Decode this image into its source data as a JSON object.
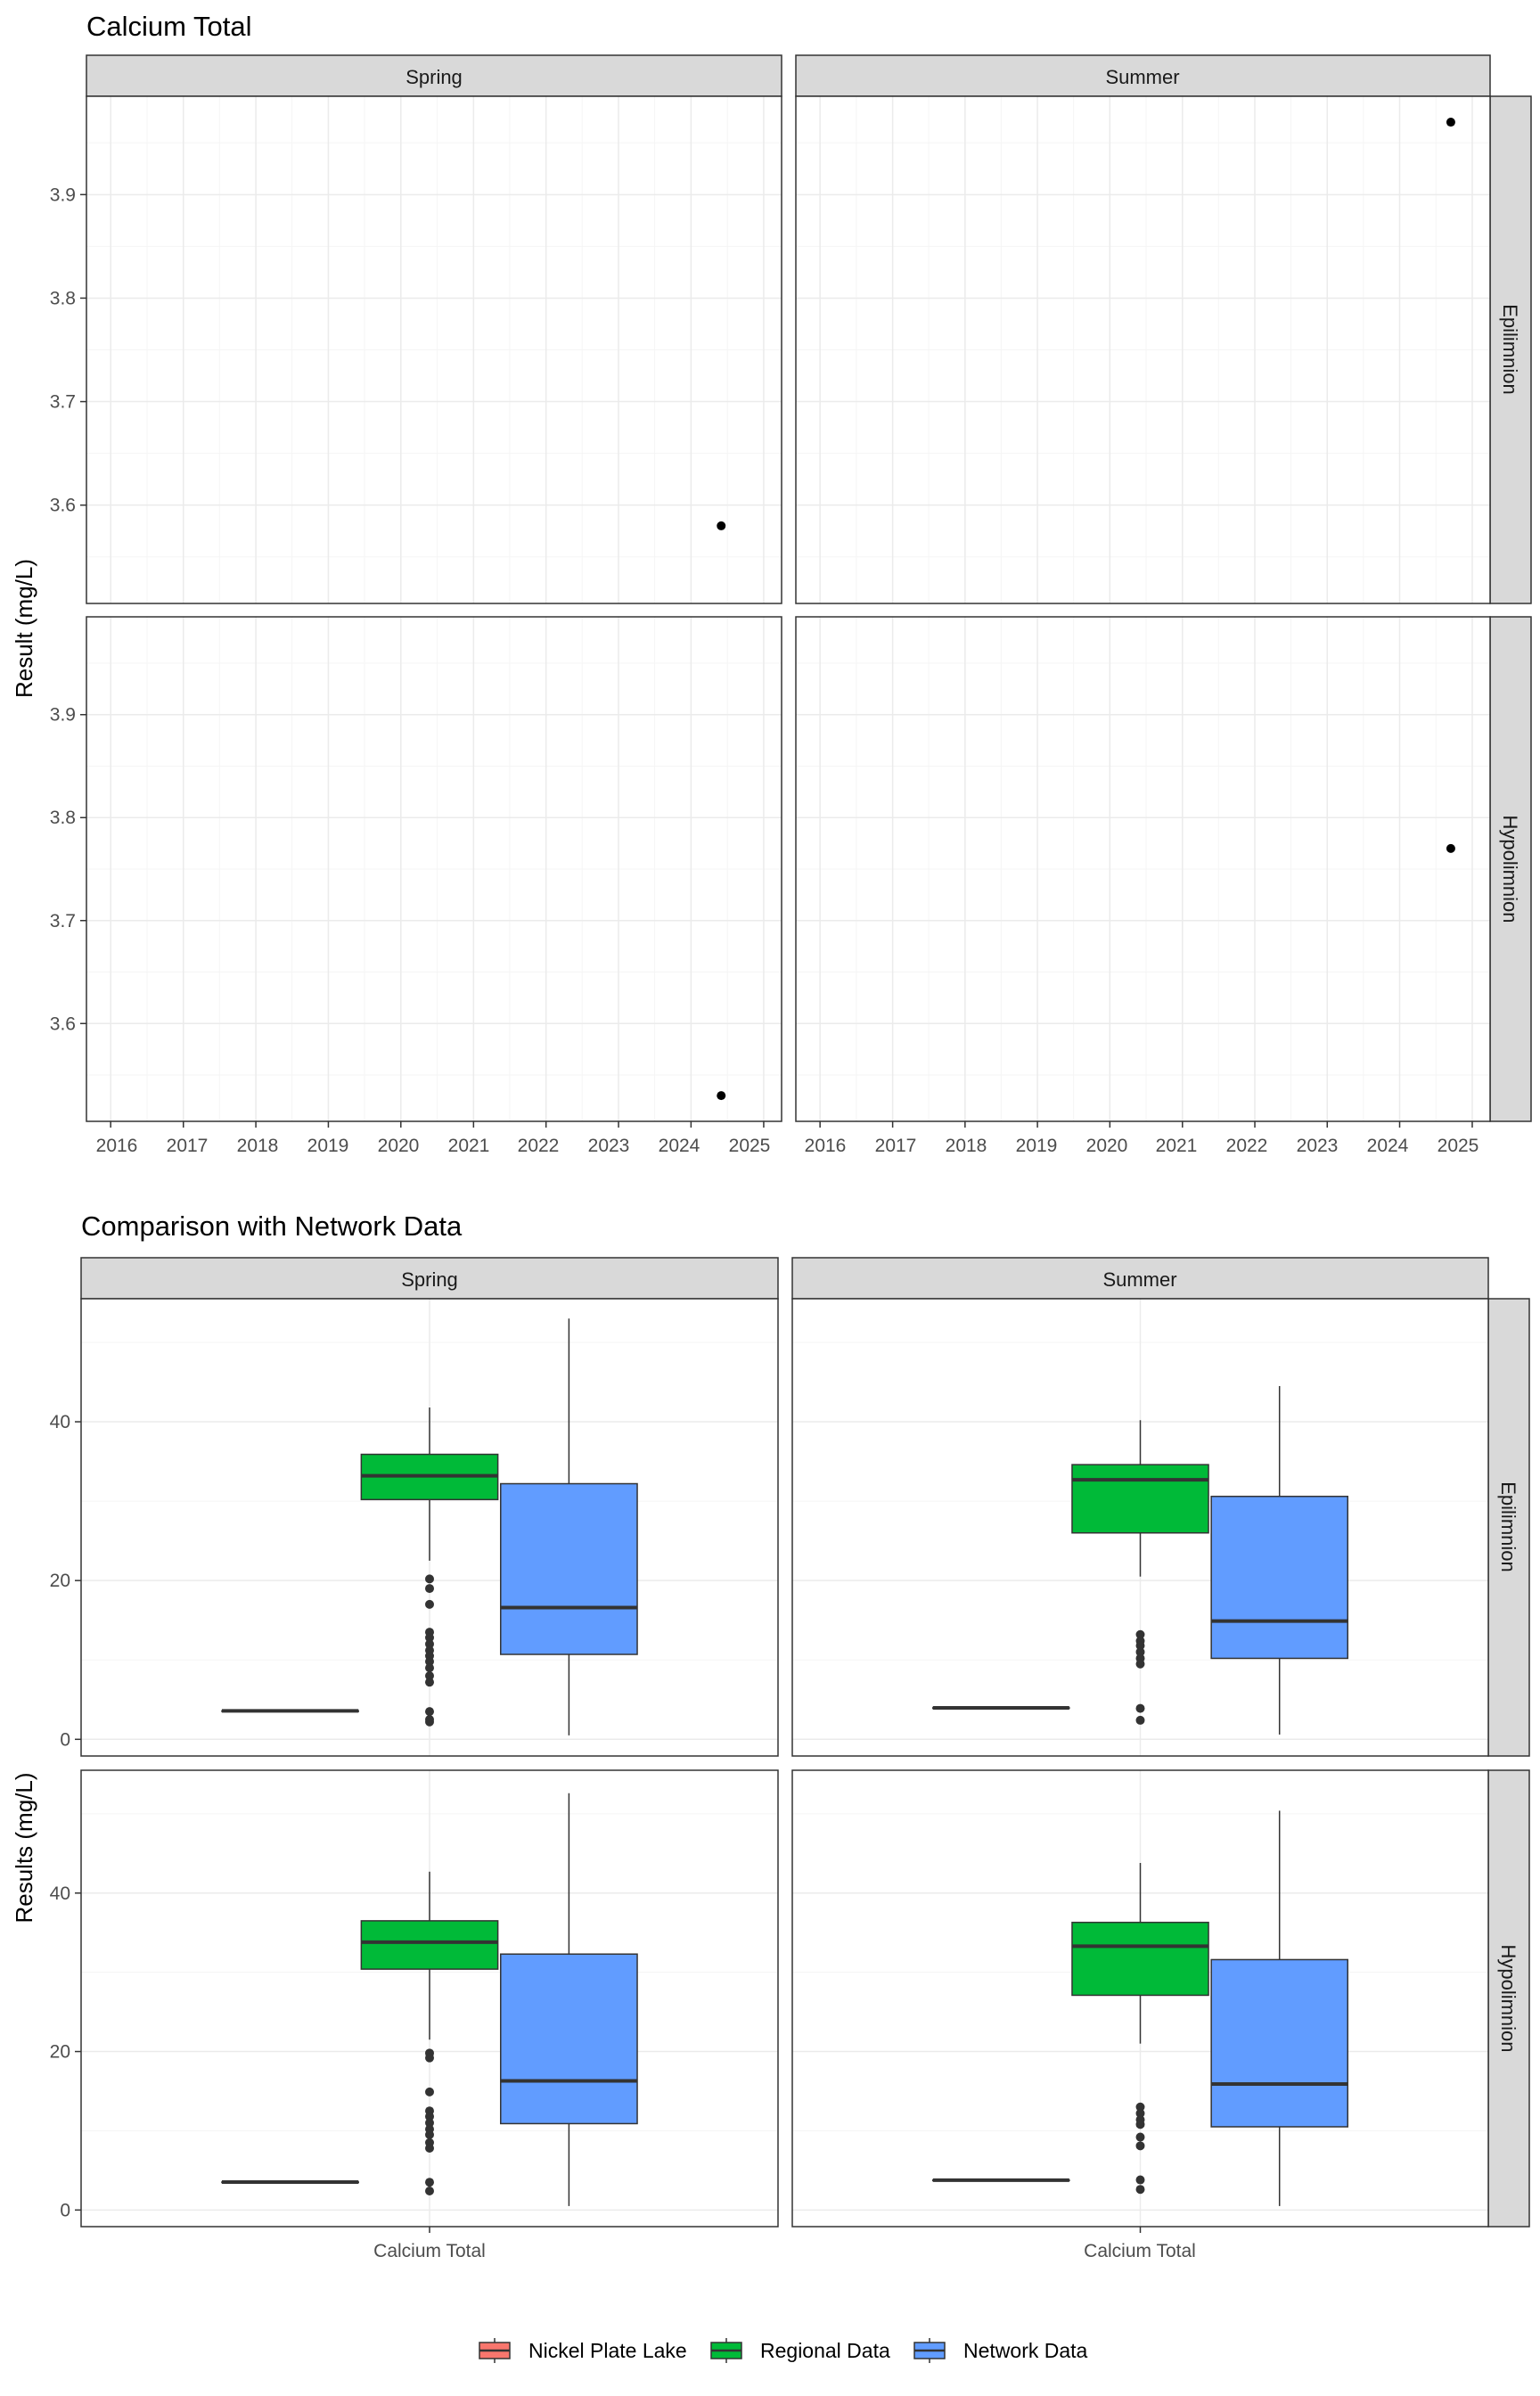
{
  "colors": {
    "panel_border": "#333333",
    "strip_fill": "#d9d9d9",
    "grid_major": "#ebebeb",
    "grid_minor": "#f5f5f5",
    "point": "#000000",
    "outlier": "#333333",
    "whisker": "#333333",
    "Nickel Plate Lake": "#F8766D",
    "Regional Data": "#00BA38",
    "Network Data": "#619CFF"
  },
  "chart_data": [
    {
      "type": "scatter",
      "title": "Calcium Total",
      "ylabel": "Result (mg/L)",
      "xlabel": "",
      "grid": true,
      "facet_cols": [
        "Spring",
        "Summer"
      ],
      "facet_rows": [
        "Epilimnion",
        "Hypolimnion"
      ],
      "x_ticks": [
        "2016",
        "2017",
        "2018",
        "2019",
        "2020",
        "2021",
        "2022",
        "2023",
        "2024",
        "2025"
      ],
      "x_range": [
        "2015-09-01",
        "2025-04-01"
      ],
      "y_ticks": [
        "3.6",
        "3.7",
        "3.8",
        "3.9"
      ],
      "y_range": [
        3.505,
        3.995
      ],
      "points": [
        {
          "season": "Spring",
          "layer": "Epilimnion",
          "date": "2024-06-01",
          "value": 3.58
        },
        {
          "season": "Summer",
          "layer": "Epilimnion",
          "date": "2024-09-15",
          "value": 3.97
        },
        {
          "season": "Spring",
          "layer": "Hypolimnion",
          "date": "2024-06-01",
          "value": 3.53
        },
        {
          "season": "Summer",
          "layer": "Hypolimnion",
          "date": "2024-09-15",
          "value": 3.77
        }
      ]
    },
    {
      "type": "box",
      "title": "Comparison with Network Data",
      "ylabel": "Results (mg/L)",
      "xlabel": "",
      "grid": true,
      "facet_cols": [
        "Spring",
        "Summer"
      ],
      "facet_rows": [
        "Epilimnion",
        "Hypolimnion"
      ],
      "categories": [
        "Calcium Total"
      ],
      "y_ticks": [
        "0",
        "20",
        "40"
      ],
      "y_range": [
        -2.1,
        55.5
      ],
      "legend": {
        "position": "bottom",
        "items": [
          "Nickel Plate Lake",
          "Regional Data",
          "Network Data"
        ]
      },
      "series": [
        {
          "name": "Nickel Plate Lake",
          "boxes": [
            {
              "season": "Spring",
              "layer": "Epilimnion",
              "min": 3.58,
              "q1": 3.58,
              "median": 3.58,
              "q3": 3.58,
              "max": 3.58,
              "outliers": []
            },
            {
              "season": "Summer",
              "layer": "Epilimnion",
              "min": 3.97,
              "q1": 3.97,
              "median": 3.97,
              "q3": 3.97,
              "max": 3.97,
              "outliers": []
            },
            {
              "season": "Spring",
              "layer": "Hypolimnion",
              "min": 3.53,
              "q1": 3.53,
              "median": 3.53,
              "q3": 3.53,
              "max": 3.53,
              "outliers": []
            },
            {
              "season": "Summer",
              "layer": "Hypolimnion",
              "min": 3.77,
              "q1": 3.77,
              "median": 3.77,
              "q3": 3.77,
              "max": 3.77,
              "outliers": []
            }
          ]
        },
        {
          "name": "Regional Data",
          "boxes": [
            {
              "season": "Spring",
              "layer": "Epilimnion",
              "min": 22.5,
              "q1": 30.2,
              "median": 33.2,
              "q3": 35.9,
              "max": 41.8,
              "outliers": [
                20.2,
                19.0,
                17.0,
                13.5,
                12.8,
                12.0,
                11.2,
                10.5,
                9.8,
                9.0,
                8.0,
                7.2,
                3.5,
                2.5,
                2.2
              ]
            },
            {
              "season": "Summer",
              "layer": "Epilimnion",
              "min": 20.5,
              "q1": 26.0,
              "median": 32.7,
              "q3": 34.6,
              "max": 40.2,
              "outliers": [
                13.2,
                12.4,
                11.8,
                11.0,
                10.2,
                9.5,
                3.9,
                2.4
              ]
            },
            {
              "season": "Spring",
              "layer": "Hypolimnion",
              "min": 21.5,
              "q1": 30.4,
              "median": 33.8,
              "q3": 36.5,
              "max": 42.7,
              "outliers": [
                19.8,
                19.2,
                14.9,
                12.5,
                11.8,
                11.0,
                10.2,
                9.5,
                8.5,
                7.8,
                3.5,
                2.4
              ]
            },
            {
              "season": "Summer",
              "layer": "Hypolimnion",
              "min": 21.0,
              "q1": 27.1,
              "median": 33.3,
              "q3": 36.3,
              "max": 43.8,
              "outliers": [
                13.0,
                12.2,
                11.4,
                10.8,
                9.2,
                8.1,
                3.8,
                2.6
              ]
            }
          ]
        },
        {
          "name": "Network Data",
          "boxes": [
            {
              "season": "Spring",
              "layer": "Epilimnion",
              "min": 0.5,
              "q1": 10.7,
              "median": 16.6,
              "q3": 32.2,
              "max": 53.0,
              "outliers": []
            },
            {
              "season": "Summer",
              "layer": "Epilimnion",
              "min": 0.6,
              "q1": 10.2,
              "median": 14.9,
              "q3": 30.6,
              "max": 44.5,
              "outliers": []
            },
            {
              "season": "Spring",
              "layer": "Hypolimnion",
              "min": 0.5,
              "q1": 10.9,
              "median": 16.3,
              "q3": 32.3,
              "max": 52.6,
              "outliers": []
            },
            {
              "season": "Summer",
              "layer": "Hypolimnion",
              "min": 0.5,
              "q1": 10.5,
              "median": 15.9,
              "q3": 31.6,
              "max": 50.4,
              "outliers": []
            }
          ]
        }
      ]
    }
  ]
}
